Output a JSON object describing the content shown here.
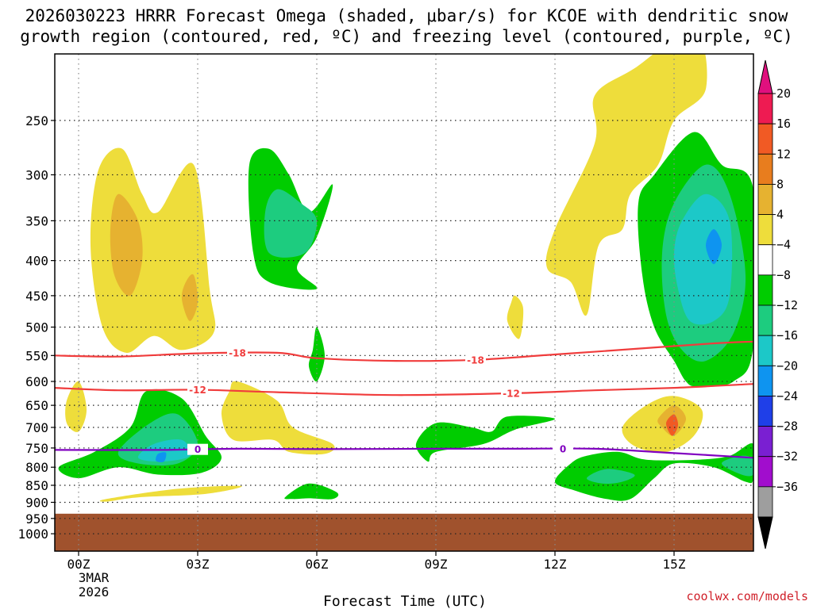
{
  "chart_data": {
    "type": "contour",
    "title_lines": [
      "2026030223 HRRR Forecast Omega (shaded, μbar/s) for KCOE with dendritic snow",
      "growth region (contoured, red, ºC) and freezing level (contoured, purple, ºC)"
    ],
    "xlabel": "Forecast Time (UTC)",
    "x_ticks": [
      {
        "h": 0,
        "label": "00Z"
      },
      {
        "h": 3,
        "label": "03Z"
      },
      {
        "h": 6,
        "label": "06Z"
      },
      {
        "h": 9,
        "label": "09Z"
      },
      {
        "h": 12,
        "label": "12Z"
      },
      {
        "h": 15,
        "label": "15Z"
      }
    ],
    "x_date_lines": [
      "3MAR",
      "2026"
    ],
    "x_range_hours": [
      -0.6,
      17
    ],
    "y_axis": "pressure (hPa, log scale)",
    "y_range": [
      200,
      1060
    ],
    "y_ticks": [
      "250",
      "300",
      "350",
      "400",
      "450",
      "500",
      "550",
      "600",
      "650",
      "700",
      "750",
      "800",
      "850",
      "900",
      "950",
      "1000"
    ],
    "ground_level_hpa": 935,
    "colorbar": {
      "labels": [
        "20",
        "16",
        "12",
        "8",
        "4",
        "−4",
        "−8",
        "−12",
        "−16",
        "−20",
        "−24",
        "−28",
        "−32",
        "−36"
      ],
      "colors": [
        "#ee1b52",
        "#f15a24",
        "#e87d1e",
        "#e6b230",
        "#eedd3b",
        "#ffffff",
        "#00cc00",
        "#1dcc7f",
        "#1cc8c8",
        "#0e94f0",
        "#1f3fe8",
        "#7a1fd2",
        "#a10dcd",
        "#9e9e9e"
      ],
      "top_arrow_color": "#e0107e",
      "bottom_arrow_color": "#000000"
    },
    "omega_contours": [
      {
        "value_range": "4 to 8",
        "points": [
          [
            0.6,
            500
          ],
          [
            0.3,
            380
          ],
          [
            0.5,
            295
          ],
          [
            1.1,
            275
          ],
          [
            1.6,
            320
          ],
          [
            2.0,
            340
          ],
          [
            2.9,
            290
          ],
          [
            3.3,
            440
          ],
          [
            3.4,
            510
          ],
          [
            2.6,
            540
          ],
          [
            1.9,
            515
          ],
          [
            1.2,
            545
          ]
        ]
      },
      {
        "value_range": "8 to 12",
        "points": [
          [
            1.0,
            320
          ],
          [
            1.5,
            350
          ],
          [
            1.6,
            400
          ],
          [
            1.3,
            450
          ],
          [
            0.9,
            420
          ],
          [
            0.8,
            360
          ]
        ]
      },
      {
        "value_range": "8 to 12",
        "points": [
          [
            2.9,
            420
          ],
          [
            3.0,
            460
          ],
          [
            2.8,
            490
          ],
          [
            2.6,
            455
          ],
          [
            2.7,
            430
          ]
        ]
      },
      {
        "value_range": "4 to 8",
        "points": [
          [
            -0.3,
            640
          ],
          [
            0.0,
            600
          ],
          [
            0.2,
            660
          ],
          [
            0.0,
            710
          ],
          [
            -0.3,
            690
          ]
        ]
      },
      {
        "value_range": "4 to 8",
        "points": [
          [
            3.8,
            620
          ],
          [
            4.0,
            600
          ],
          [
            5.0,
            640
          ],
          [
            5.4,
            700
          ],
          [
            6.4,
            740
          ],
          [
            6.2,
            765
          ],
          [
            5.3,
            760
          ],
          [
            4.9,
            730
          ],
          [
            3.9,
            730
          ],
          [
            3.6,
            670
          ]
        ]
      },
      {
        "value_range": "4 to 8",
        "points": [
          [
            0.7,
            890
          ],
          [
            2.5,
            860
          ],
          [
            4.1,
            852
          ],
          [
            3.2,
            875
          ],
          [
            1.5,
            885
          ],
          [
            0.7,
            898
          ]
        ]
      },
      {
        "value_range": "4 to 8",
        "points": [
          [
            11.0,
            450
          ],
          [
            11.2,
            470
          ],
          [
            11.1,
            520
          ],
          [
            10.8,
            490
          ],
          [
            10.9,
            460
          ]
        ]
      },
      {
        "value_range": "4 to 8",
        "points": [
          [
            11.8,
            410
          ],
          [
            12.0,
            360
          ],
          [
            13.0,
            270
          ],
          [
            13.0,
            230
          ],
          [
            14.0,
            210
          ],
          [
            15.5,
            185
          ],
          [
            15.8,
            225
          ],
          [
            15.0,
            250
          ],
          [
            14.6,
            290
          ],
          [
            13.9,
            320
          ],
          [
            13.7,
            360
          ],
          [
            13.1,
            380
          ],
          [
            12.8,
            480
          ],
          [
            12.4,
            430
          ]
        ]
      },
      {
        "value_range": "4 to 8",
        "points": [
          [
            13.7,
            700
          ],
          [
            14.3,
            650
          ],
          [
            15.0,
            630
          ],
          [
            15.7,
            660
          ],
          [
            15.5,
            720
          ],
          [
            14.8,
            760
          ],
          [
            14.0,
            745
          ]
        ]
      },
      {
        "value_range": "8 to 12",
        "points": [
          [
            14.6,
            680
          ],
          [
            15.0,
            650
          ],
          [
            15.3,
            680
          ],
          [
            15.0,
            720
          ],
          [
            14.7,
            700
          ]
        ]
      },
      {
        "value_range": "12 to 16",
        "points": [
          [
            14.8,
            690
          ],
          [
            15.0,
            670
          ],
          [
            15.1,
            695
          ],
          [
            14.95,
            720
          ]
        ]
      },
      {
        "value_range": "-4 to -8",
        "points": [
          [
            4.3,
            290
          ],
          [
            4.8,
            275
          ],
          [
            5.3,
            300
          ],
          [
            5.8,
            340
          ],
          [
            6.4,
            310
          ],
          [
            6.0,
            370
          ],
          [
            5.5,
            410
          ],
          [
            6.0,
            440
          ],
          [
            4.8,
            430
          ],
          [
            4.4,
            390
          ]
        ]
      },
      {
        "value_range": "-8 to -12",
        "points": [
          [
            4.7,
            340
          ],
          [
            5.0,
            315
          ],
          [
            5.6,
            330
          ],
          [
            6.0,
            350
          ],
          [
            5.7,
            390
          ],
          [
            4.8,
            390
          ]
        ]
      },
      {
        "value_range": "-4 to -8",
        "points": [
          [
            5.9,
            540
          ],
          [
            6.0,
            500
          ],
          [
            6.2,
            550
          ],
          [
            6.0,
            600
          ],
          [
            5.8,
            570
          ]
        ]
      },
      {
        "value_range": "-4 to -8",
        "points": [
          [
            -0.5,
            800
          ],
          [
            0.4,
            760
          ],
          [
            1.3,
            700
          ],
          [
            1.7,
            620
          ],
          [
            2.6,
            635
          ],
          [
            3.2,
            720
          ],
          [
            3.6,
            775
          ],
          [
            3.1,
            815
          ],
          [
            2.0,
            820
          ],
          [
            1.0,
            800
          ],
          [
            0.0,
            830
          ]
        ]
      },
      {
        "value_range": "-8 to -12",
        "points": [
          [
            1.8,
            690
          ],
          [
            2.5,
            670
          ],
          [
            3.0,
            740
          ],
          [
            2.5,
            790
          ],
          [
            1.5,
            790
          ],
          [
            1.0,
            760
          ]
        ]
      },
      {
        "value_range": "-12 to -16",
        "points": [
          [
            1.9,
            740
          ],
          [
            2.6,
            730
          ],
          [
            2.8,
            770
          ],
          [
            2.1,
            785
          ],
          [
            1.5,
            775
          ]
        ]
      },
      {
        "value_range": "-16 to -20",
        "points": [
          [
            2.0,
            765
          ],
          [
            2.2,
            762
          ],
          [
            2.15,
            785
          ],
          [
            1.95,
            783
          ]
        ]
      },
      {
        "value_range": "-4 to -8",
        "points": [
          [
            5.2,
            885
          ],
          [
            5.8,
            845
          ],
          [
            6.5,
            870
          ],
          [
            6.4,
            890
          ],
          [
            5.8,
            888
          ],
          [
            5.4,
            890
          ]
        ]
      },
      {
        "value_range": "-4 to -8",
        "points": [
          [
            8.5,
            740
          ],
          [
            9.0,
            690
          ],
          [
            9.9,
            700
          ],
          [
            10.4,
            710
          ],
          [
            10.8,
            675
          ],
          [
            12.0,
            680
          ],
          [
            11.0,
            705
          ],
          [
            10.2,
            740
          ],
          [
            9.0,
            760
          ],
          [
            8.8,
            785
          ]
        ]
      },
      {
        "value_range": "-4 to -8",
        "points": [
          [
            12.0,
            840
          ],
          [
            12.4,
            790
          ],
          [
            12.8,
            770
          ],
          [
            13.6,
            760
          ],
          [
            14.3,
            780
          ],
          [
            15.6,
            780
          ],
          [
            16.4,
            770
          ],
          [
            17.0,
            740
          ],
          [
            17.0,
            830
          ],
          [
            16.8,
            840
          ],
          [
            16.0,
            800
          ],
          [
            15.0,
            790
          ],
          [
            14.5,
            830
          ],
          [
            13.9,
            890
          ],
          [
            13.3,
            890
          ],
          [
            12.5,
            865
          ]
        ]
      },
      {
        "value_range": "-8 to -12",
        "points": [
          [
            12.8,
            830
          ],
          [
            13.3,
            805
          ],
          [
            14.0,
            820
          ],
          [
            13.7,
            840
          ],
          [
            13.2,
            845
          ]
        ]
      },
      {
        "value_range": "-8 to -12",
        "points": [
          [
            16.2,
            790
          ],
          [
            16.7,
            770
          ],
          [
            17.0,
            780
          ],
          [
            17.0,
            820
          ],
          [
            16.7,
            820
          ]
        ]
      },
      {
        "value_range": "-4 to -8",
        "points": [
          [
            14.2,
            420
          ],
          [
            14.1,
            330
          ],
          [
            14.5,
            300
          ],
          [
            15.5,
            260
          ],
          [
            16.2,
            290
          ],
          [
            17.0,
            315
          ],
          [
            17.0,
            530
          ],
          [
            16.5,
            600
          ],
          [
            15.6,
            610
          ],
          [
            15.3,
            600
          ],
          [
            15.0,
            560
          ],
          [
            14.5,
            500
          ]
        ]
      },
      {
        "value_range": "-8 to -12",
        "points": [
          [
            14.7,
            390
          ],
          [
            15.0,
            330
          ],
          [
            15.8,
            290
          ],
          [
            16.4,
            320
          ],
          [
            16.8,
            420
          ],
          [
            16.5,
            510
          ],
          [
            15.8,
            560
          ],
          [
            15.2,
            540
          ],
          [
            14.8,
            480
          ]
        ]
      },
      {
        "value_range": "-12 to -16",
        "points": [
          [
            15.0,
            390
          ],
          [
            15.2,
            350
          ],
          [
            15.8,
            320
          ],
          [
            16.4,
            350
          ],
          [
            16.4,
            450
          ],
          [
            16.0,
            490
          ],
          [
            15.4,
            490
          ],
          [
            15.1,
            440
          ]
        ]
      },
      {
        "value_range": "-16 to -20",
        "points": [
          [
            15.8,
            380
          ],
          [
            16.0,
            360
          ],
          [
            16.2,
            380
          ],
          [
            16.0,
            405
          ]
        ]
      }
    ],
    "line_contours": [
      {
        "label": "-18",
        "color": "#f03c3c",
        "points": [
          [
            -0.6,
            550
          ],
          [
            1,
            552
          ],
          [
            3,
            546
          ],
          [
            5,
            545
          ],
          [
            6,
            555
          ],
          [
            8,
            560
          ],
          [
            10,
            558
          ],
          [
            12,
            548
          ],
          [
            14,
            538
          ],
          [
            16,
            528
          ],
          [
            17,
            525
          ]
        ],
        "label_hours": [
          4.0,
          10.0
        ]
      },
      {
        "label": "-12",
        "color": "#f03c3c",
        "points": [
          [
            -0.6,
            613
          ],
          [
            1,
            618
          ],
          [
            3,
            617
          ],
          [
            5,
            622
          ],
          [
            8,
            628
          ],
          [
            11,
            624
          ],
          [
            13,
            618
          ],
          [
            15,
            613
          ],
          [
            17,
            605
          ]
        ],
        "label_hours": [
          3.0,
          10.9
        ]
      },
      {
        "label": "0",
        "color": "#8000c0",
        "points": [
          [
            -0.6,
            755
          ],
          [
            2,
            755
          ],
          [
            4,
            752
          ],
          [
            6,
            753
          ],
          [
            9,
            752
          ],
          [
            11,
            752
          ],
          [
            13,
            752
          ],
          [
            15,
            763
          ],
          [
            17,
            775
          ]
        ],
        "label_hours": [
          3.0,
          12.2
        ]
      }
    ]
  },
  "credit": "coolwx.com/models"
}
